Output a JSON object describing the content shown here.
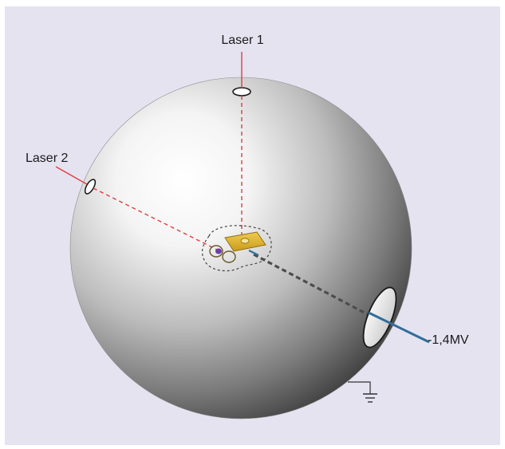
{
  "diagram": {
    "labels": {
      "laser1": "Laser 1",
      "laser2": "Laser 2",
      "voltage": "-1,4MV"
    },
    "colors": {
      "background": "#e6e3f1",
      "laser_beam": "#e23c3c",
      "electrode": "#2f6f9a",
      "target_plate": "#e2bd3c",
      "sphere_highlight": "#ffffff",
      "sphere_shadow": "#3a3a3a"
    }
  }
}
